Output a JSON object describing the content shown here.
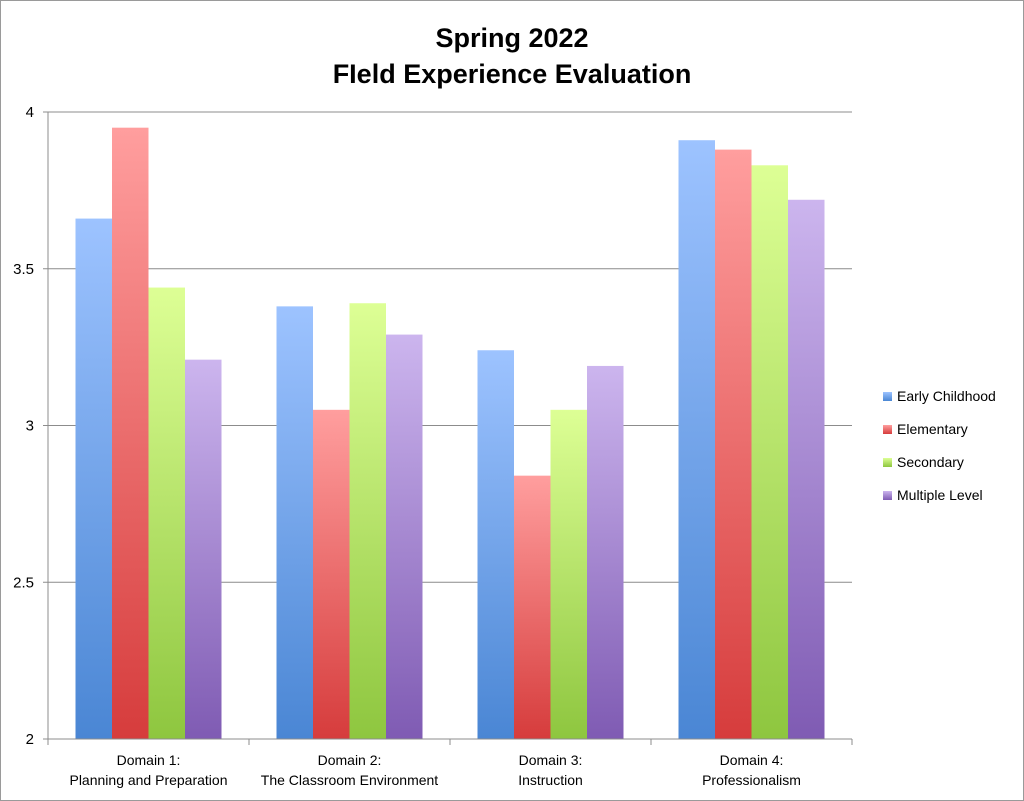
{
  "chart_data": {
    "type": "bar",
    "title": [
      "Spring 2022",
      "FIeld Experience Evaluation"
    ],
    "xlabel": "",
    "ylabel": "",
    "ylim": [
      2,
      4
    ],
    "yticks": [
      "2",
      "2.5",
      "3",
      "3.5",
      "4"
    ],
    "grid": true,
    "legend_position": "right",
    "categories": [
      [
        "Domain 1:",
        "Planning and Preparation"
      ],
      [
        "Domain 2:",
        "The Classroom Environment"
      ],
      [
        "Domain 3:",
        "Instruction"
      ],
      [
        "Domain 4:",
        "Professionalism"
      ]
    ],
    "series": [
      {
        "name": "Early Childhood",
        "values": [
          3.66,
          3.38,
          3.24,
          3.91
        ],
        "color_top": "#9dc3ff",
        "color_bottom": "#4a86d4"
      },
      {
        "name": "Elementary",
        "values": [
          3.95,
          3.05,
          2.84,
          3.88
        ],
        "color_top": "#ff9e9e",
        "color_bottom": "#d63c3c"
      },
      {
        "name": "Secondary",
        "values": [
          3.44,
          3.39,
          3.05,
          3.83
        ],
        "color_top": "#ddff95",
        "color_bottom": "#8ec63f"
      },
      {
        "name": "Multiple Level",
        "values": [
          3.21,
          3.29,
          3.19,
          3.72
        ],
        "color_top": "#ccb5ee",
        "color_bottom": "#7f5bb3"
      }
    ]
  }
}
